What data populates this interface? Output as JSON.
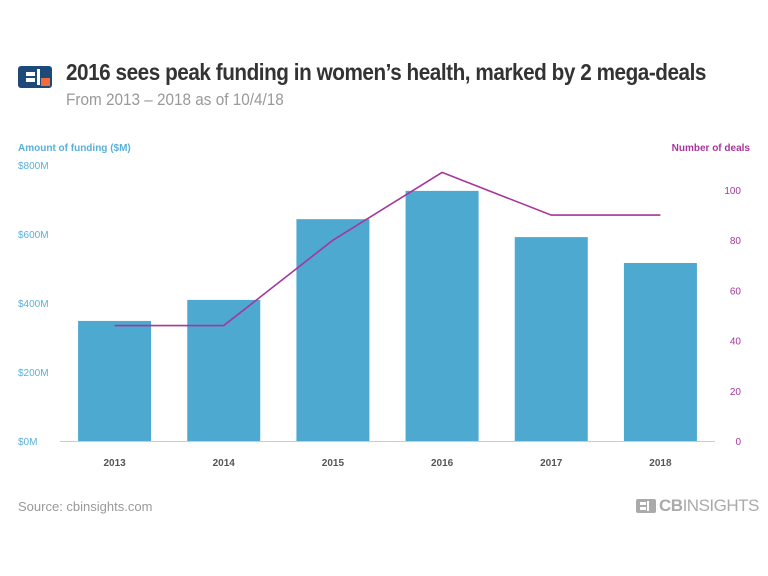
{
  "header": {
    "title": "2016 sees peak funding in women’s health, marked by 2 mega-deals",
    "subtitle": "From 2013 – 2018 as of 10/4/18"
  },
  "footer": {
    "source": "Source: cbinsights.com",
    "brand_bold": "CB",
    "brand_light": "INSIGHTS"
  },
  "colors": {
    "bars": "#4da9cf",
    "line": "#a7369b",
    "left_axis": "#5ab0d8",
    "right_axis": "#a7369b"
  },
  "chart_data": {
    "type": "bar+line",
    "categories": [
      "2013",
      "2014",
      "2015",
      "2016",
      "2017",
      "2018"
    ],
    "series": [
      {
        "name": "Amount of funding ($M)",
        "type": "bar",
        "axis": "left",
        "values": [
          348,
          409,
          643,
          725,
          591,
          516
        ]
      },
      {
        "name": "Number of deals",
        "type": "line",
        "axis": "right",
        "values": [
          46,
          46,
          80,
          107,
          90,
          90
        ]
      }
    ],
    "ylabel_left": "Amount of funding ($M)",
    "ylabel_right": "Number of deals",
    "ylim_left": [
      0,
      800
    ],
    "ylim_right": [
      0,
      110
    ],
    "left_ticks": [
      {
        "v": 0,
        "label": "$0M"
      },
      {
        "v": 200,
        "label": "$200M"
      },
      {
        "v": 400,
        "label": "$400M"
      },
      {
        "v": 600,
        "label": "$600M"
      },
      {
        "v": 800,
        "label": "$800M"
      }
    ],
    "right_ticks": [
      {
        "v": 0,
        "label": "0"
      },
      {
        "v": 20,
        "label": "20"
      },
      {
        "v": 40,
        "label": "40"
      },
      {
        "v": 60,
        "label": "60"
      },
      {
        "v": 80,
        "label": "80"
      },
      {
        "v": 100,
        "label": "100"
      }
    ],
    "grid": false,
    "legend": "none"
  }
}
